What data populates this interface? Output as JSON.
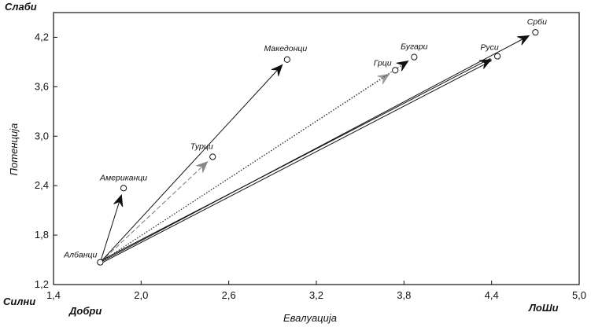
{
  "chart_data": {
    "type": "scatter",
    "xlabel": "Евалуација",
    "ylabel": "Потенција",
    "xlim": [
      1.4,
      5.0
    ],
    "ylim": [
      1.2,
      4.5
    ],
    "xticks": [
      "1,4",
      "2,0",
      "2,6",
      "3,2",
      "3,8",
      "4,4",
      "5,0"
    ],
    "yticks": [
      "1,2",
      "1,8",
      "2,4",
      "3,0",
      "3,6",
      "4,2"
    ],
    "xtick_values": [
      1.4,
      2.0,
      2.6,
      3.2,
      3.8,
      4.4,
      5.0
    ],
    "ytick_values": [
      1.2,
      1.8,
      2.4,
      3.0,
      3.6,
      4.2
    ],
    "corner_labels": {
      "top_left": "Слаби",
      "bottom_left": "Силни",
      "bottom_left_x": "Добри",
      "bottom_right_x": "ЛоШи"
    },
    "grid": false,
    "origin": {
      "name": "Албанци",
      "x": 1.72,
      "y": 1.47
    },
    "points": [
      {
        "name": "Американци",
        "x": 1.88,
        "y": 2.37,
        "style": "solid"
      },
      {
        "name": "Турци",
        "x": 2.49,
        "y": 2.75,
        "style": "dashed"
      },
      {
        "name": "Македонци",
        "x": 3.0,
        "y": 3.93,
        "style": "solid"
      },
      {
        "name": "Грци",
        "x": 3.74,
        "y": 3.8,
        "style": "dotted"
      },
      {
        "name": "Бугари",
        "x": 3.87,
        "y": 3.96,
        "style": "dotted"
      },
      {
        "name": "Руси",
        "x": 4.44,
        "y": 3.97,
        "style": "double"
      },
      {
        "name": "Срби",
        "x": 4.7,
        "y": 4.26,
        "style": "solid"
      }
    ]
  }
}
